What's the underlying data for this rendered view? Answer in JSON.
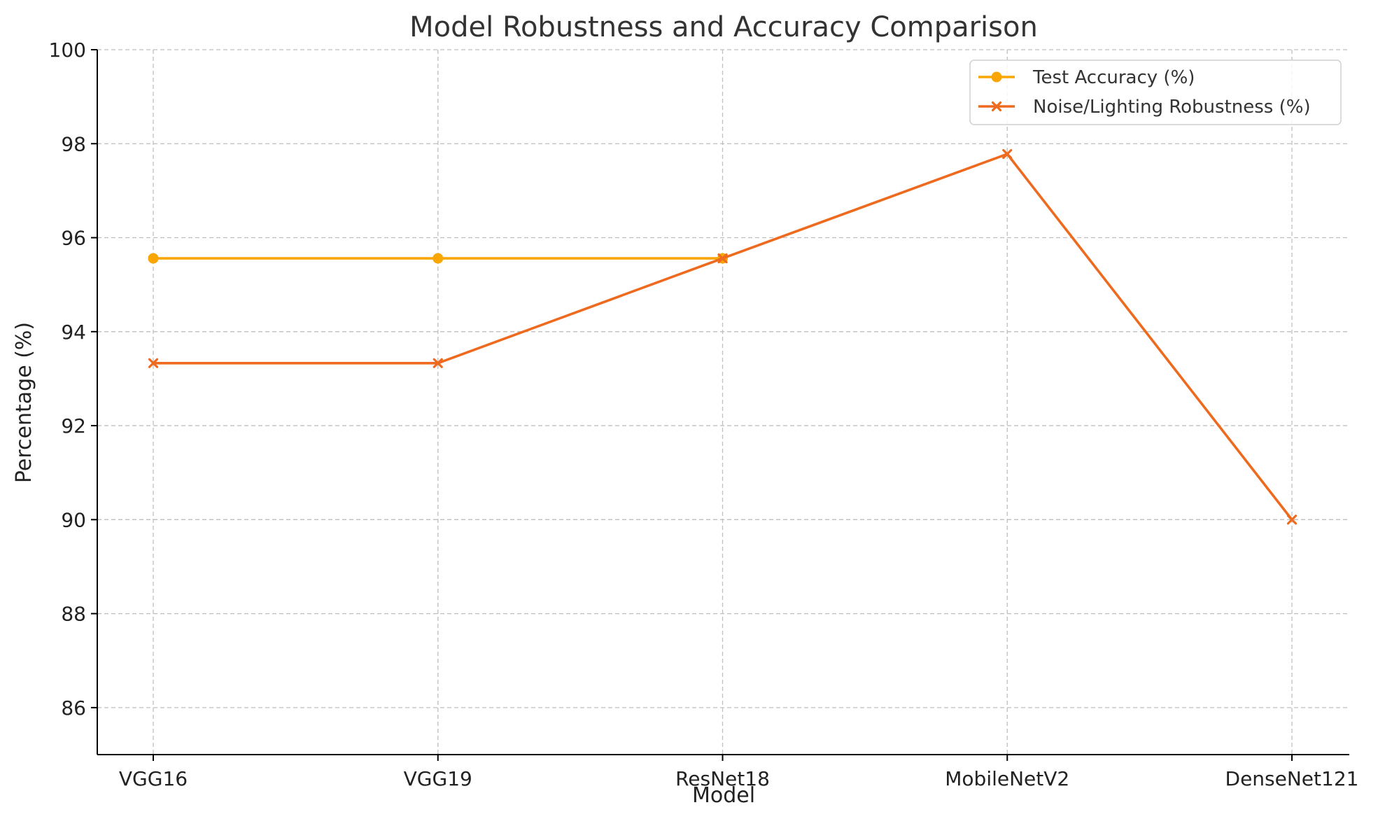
{
  "chart_data": {
    "type": "line",
    "title": "Model Robustness and Accuracy Comparison",
    "xlabel": "Model",
    "ylabel": "Percentage (%)",
    "categories": [
      "VGG16",
      "VGG19",
      "ResNet18",
      "MobileNetV2",
      "DenseNet121"
    ],
    "ylim": [
      85,
      100
    ],
    "yticks": [
      86,
      88,
      90,
      92,
      94,
      96,
      98,
      100
    ],
    "grid": true,
    "legend_position": "top-right",
    "series": [
      {
        "name": "Test Accuracy (%)",
        "color": "#F9A602",
        "marker": "circle",
        "values": [
          95.56,
          95.56,
          95.56,
          null,
          null
        ]
      },
      {
        "name": "Noise/Lighting Robustness (%)",
        "color": "#EE6A1F",
        "marker": "x",
        "values": [
          93.33,
          93.33,
          95.56,
          97.78,
          90.0
        ]
      }
    ]
  }
}
